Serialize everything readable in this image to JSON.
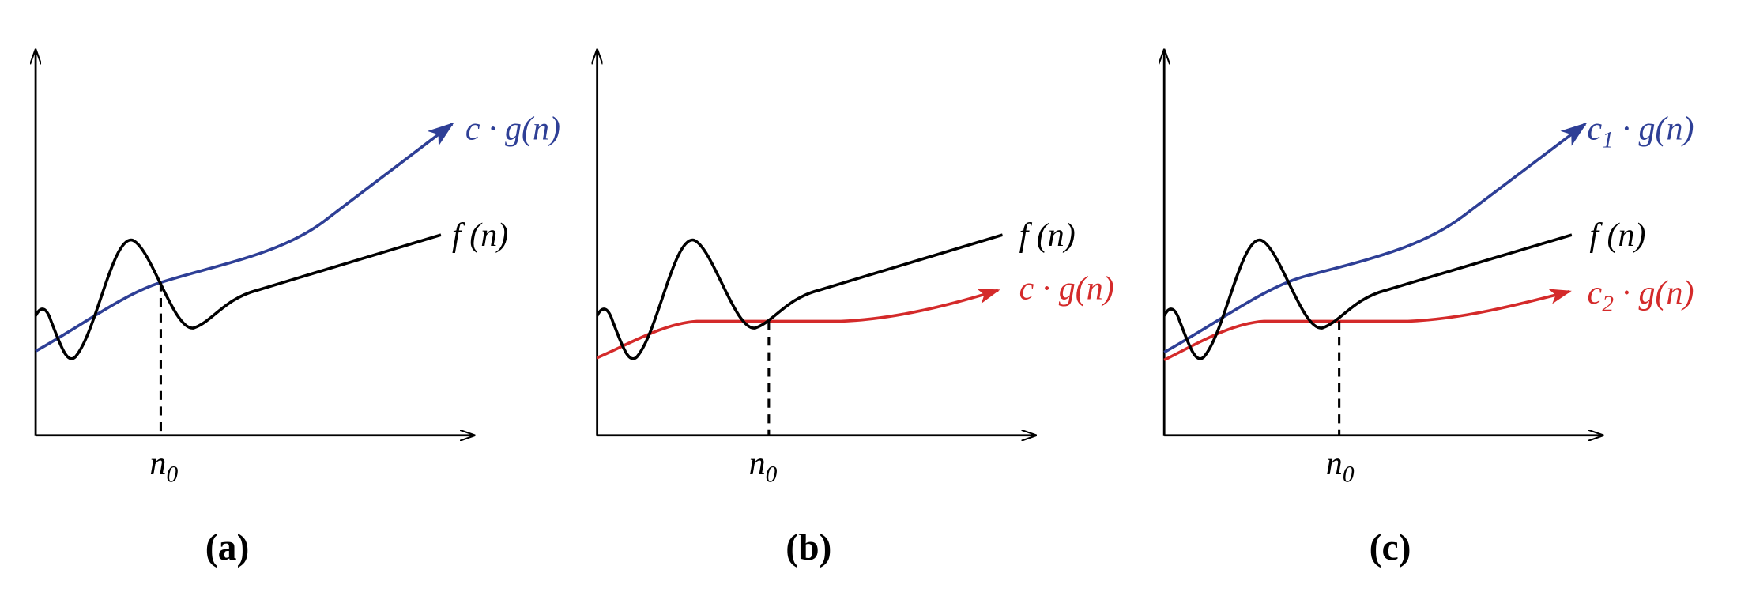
{
  "panels": [
    {
      "caption": "(a)",
      "upper_label": "c · g(n)",
      "f_label": "f (n)",
      "n0": {
        "base": "n",
        "sub": "0"
      }
    },
    {
      "caption": "(b)",
      "f_label": "f (n)",
      "lower_label": "c · g(n)",
      "n0": {
        "base": "n",
        "sub": "0"
      }
    },
    {
      "caption": "(c)",
      "upper_label": {
        "base": "c",
        "sub": "1",
        "rest": " · g(n)"
      },
      "f_label": "f (n)",
      "lower_label": {
        "base": "c",
        "sub": "2",
        "rest": " · g(n)"
      },
      "n0": {
        "base": "n",
        "sub": "0"
      }
    }
  ]
}
